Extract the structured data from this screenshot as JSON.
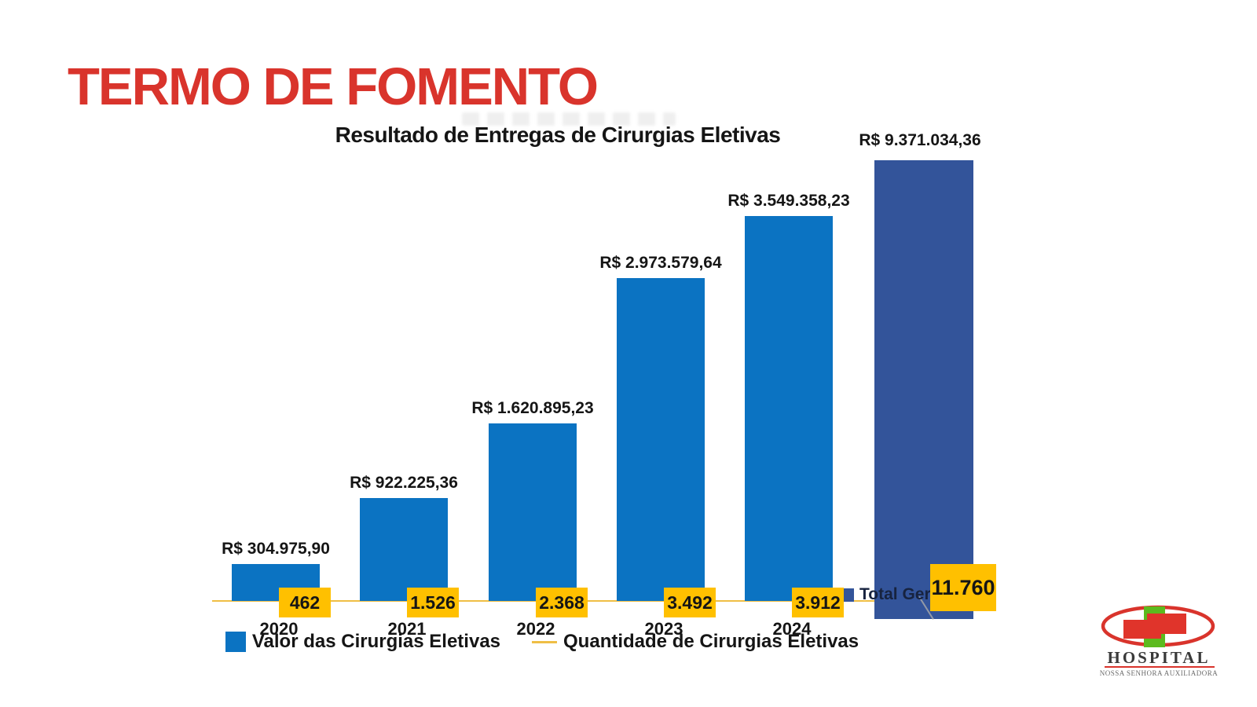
{
  "page": {
    "main_title": "TERMO DE FOMENTO"
  },
  "chart_data": {
    "type": "bar",
    "title": "Resultado de Entregas de Cirurgias Eletivas",
    "categories": [
      "2020",
      "2021",
      "2022",
      "2023",
      "2024"
    ],
    "series": [
      {
        "name": "Valor das Cirurgias Eletivas",
        "type": "bar",
        "color": "#0B73C2",
        "values": [
          304975.9,
          922225.36,
          1620895.23,
          2973579.64,
          3549358.23
        ],
        "labels": [
          "R$ 304.975,90",
          "R$ 922.225,36",
          "R$ 1.620.895,23",
          "R$ 2.973.579,64",
          "R$ 3.549.358,23"
        ]
      },
      {
        "name": "Quantidade de Cirurgias Eletivas",
        "type": "line",
        "color": "#EFBE45",
        "marker_fill": "#FFC000",
        "values": [
          462,
          1526,
          2368,
          3492,
          3912
        ],
        "labels": [
          "462",
          "1.526",
          "2.368",
          "3.492",
          "3.912"
        ]
      }
    ],
    "total": {
      "legend_label": "Total Geral",
      "bar_color": "#33549A",
      "value": 9371034.36,
      "value_label": "R$ 9.371.034,36",
      "qty": 11760,
      "qty_label": "11.760"
    },
    "legend_position": "bottom",
    "axes_visible": false,
    "grid": false
  },
  "colors": {
    "title_red": "#D9342C",
    "bar_blue": "#0B73C2",
    "total_blue": "#33549A",
    "qty_gold": "#FFC000",
    "line_gold": "#EFBE45",
    "text_dark": "#151515"
  },
  "logo": {
    "name": "HOSPITAL",
    "subtitle": "Nossa Senhora Auxiliadora"
  }
}
